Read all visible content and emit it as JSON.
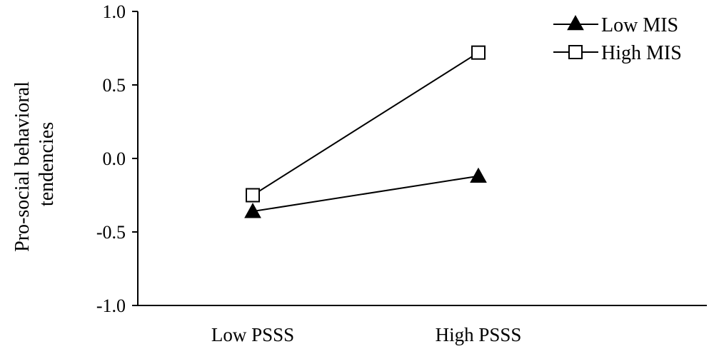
{
  "chart_data": {
    "type": "line",
    "title": "",
    "xlabel": "",
    "ylabel_lines": [
      "Pro-social behavioral",
      "tendencies"
    ],
    "categories": [
      "Low PSSS",
      "High PSSS"
    ],
    "ylim": [
      -1.0,
      1.0
    ],
    "yticks": [
      "-1.0",
      "-0.5",
      "0.0",
      "0.5",
      "1.0"
    ],
    "grid": false,
    "legend_position": "top-right",
    "series": [
      {
        "name": "Low MIS",
        "marker": "filled-triangle",
        "values": [
          -0.36,
          -0.12
        ]
      },
      {
        "name": "High MIS",
        "marker": "open-square",
        "values": [
          -0.25,
          0.72
        ]
      }
    ]
  }
}
